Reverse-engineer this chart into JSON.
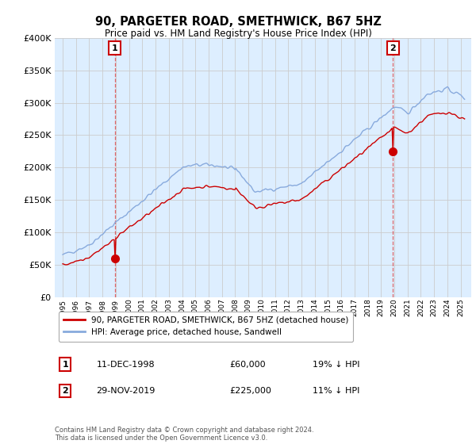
{
  "title": "90, PARGETER ROAD, SMETHWICK, B67 5HZ",
  "subtitle": "Price paid vs. HM Land Registry's House Price Index (HPI)",
  "property_label": "90, PARGETER ROAD, SMETHWICK, B67 5HZ (detached house)",
  "hpi_label": "HPI: Average price, detached house, Sandwell",
  "annotation1": {
    "num": "1",
    "date": "11-DEC-1998",
    "price": "£60,000",
    "pct": "19% ↓ HPI",
    "year": 1998.92,
    "value": 60000
  },
  "annotation2": {
    "num": "2",
    "date": "29-NOV-2019",
    "price": "£225,000",
    "pct": "11% ↓ HPI",
    "year": 2019.9,
    "value": 225000
  },
  "footer": "Contains HM Land Registry data © Crown copyright and database right 2024.\nThis data is licensed under the Open Government Licence v3.0.",
  "ylim": [
    0,
    400000
  ],
  "yticks": [
    0,
    50000,
    100000,
    150000,
    200000,
    250000,
    300000,
    350000,
    400000
  ],
  "line_color_property": "#cc0000",
  "line_color_hpi": "#88aadd",
  "grid_color": "#cccccc",
  "bg_color": "#ffffff",
  "chart_bg_color": "#ddeeff",
  "annotation_line_color": "#dd4444",
  "box_color": "#cc0000",
  "marker_color": "#cc0000"
}
